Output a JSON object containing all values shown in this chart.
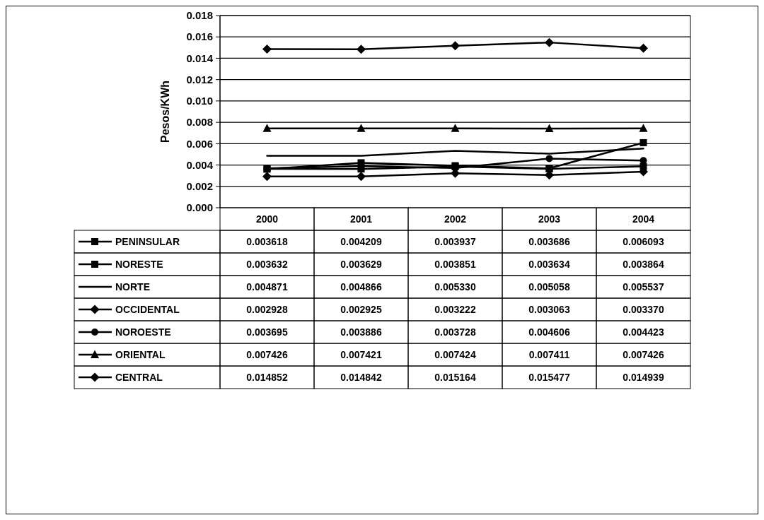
{
  "chart_data": {
    "type": "line",
    "ylabel": "Pesos/KWh",
    "categories": [
      "2000",
      "2001",
      "2002",
      "2003",
      "2004"
    ],
    "ylim": [
      0,
      0.018
    ],
    "yticks": [
      {
        "value": 0,
        "label": "0.000"
      },
      {
        "value": 0.002,
        "label": "0.002"
      },
      {
        "value": 0.004,
        "label": "0.004"
      },
      {
        "value": 0.006,
        "label": "0.006"
      },
      {
        "value": 0.008,
        "label": "0.008"
      },
      {
        "value": 0.01,
        "label": "0.010"
      },
      {
        "value": 0.012,
        "label": "0.012"
      },
      {
        "value": 0.014,
        "label": "0.014"
      },
      {
        "value": 0.016,
        "label": "0.016"
      },
      {
        "value": 0.018,
        "label": "0.018"
      }
    ],
    "grid": "y",
    "legend": "bottom",
    "line_style": "solid",
    "series": [
      {
        "name": "PENINSULAR",
        "color": "#000000",
        "marker": "square",
        "values": [
          0.003618,
          0.004209,
          0.003937,
          0.003686,
          0.006093
        ],
        "value_labels": [
          "0.003618",
          "0.004209",
          "0.003937",
          "0.003686",
          "0.006093"
        ]
      },
      {
        "name": "NORESTE",
        "color": "#000000",
        "marker": "square",
        "values": [
          0.003632,
          0.003629,
          0.003851,
          0.003634,
          0.003864
        ],
        "value_labels": [
          "0.003632",
          "0.003629",
          "0.003851",
          "0.003634",
          "0.003864"
        ]
      },
      {
        "name": "NORTE",
        "color": "#000000",
        "marker": "none",
        "values": [
          0.004871,
          0.004866,
          0.00533,
          0.005058,
          0.005537
        ],
        "value_labels": [
          "0.004871",
          "0.004866",
          "0.005330",
          "0.005058",
          "0.005537"
        ]
      },
      {
        "name": "OCCIDENTAL",
        "color": "#000000",
        "marker": "diamond",
        "values": [
          0.002928,
          0.002925,
          0.003222,
          0.003063,
          0.00337
        ],
        "value_labels": [
          "0.002928",
          "0.002925",
          "0.003222",
          "0.003063",
          "0.003370"
        ]
      },
      {
        "name": "NOROESTE",
        "color": "#000000",
        "marker": "circle",
        "values": [
          0.003695,
          0.003886,
          0.003728,
          0.004606,
          0.004423
        ],
        "value_labels": [
          "0.003695",
          "0.003886",
          "0.003728",
          "0.004606",
          "0.004423"
        ]
      },
      {
        "name": "ORIENTAL",
        "color": "#000000",
        "marker": "triangle",
        "values": [
          0.007426,
          0.007421,
          0.007424,
          0.007411,
          0.007426
        ],
        "value_labels": [
          "0.007426",
          "0.007421",
          "0.007424",
          "0.007411",
          "0.007426"
        ]
      },
      {
        "name": "CENTRAL",
        "color": "#000000",
        "marker": "diamond",
        "values": [
          0.014852,
          0.014842,
          0.015164,
          0.015477,
          0.014939
        ],
        "value_labels": [
          "0.014852",
          "0.014842",
          "0.015164",
          "0.015477",
          "0.014939"
        ]
      }
    ]
  }
}
